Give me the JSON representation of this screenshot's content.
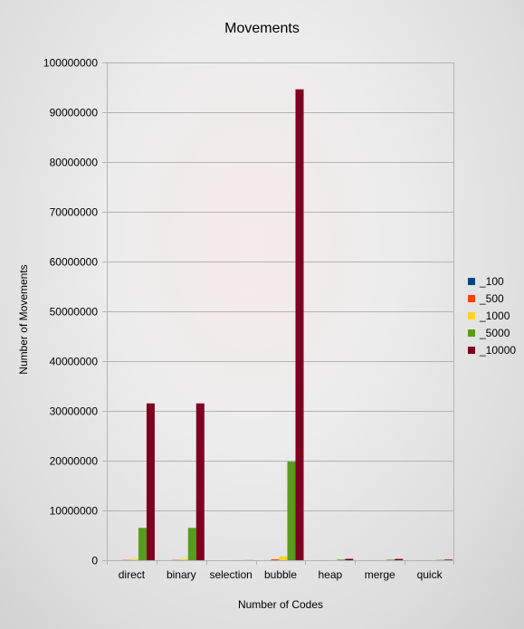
{
  "chart_data": {
    "type": "bar",
    "title": "Movements",
    "xlabel": "Number of Codes",
    "ylabel": "Number of Movements",
    "ylim": [
      0,
      100000000
    ],
    "yticks": [
      "0",
      "10000000",
      "20000000",
      "30000000",
      "40000000",
      "50000000",
      "60000000",
      "70000000",
      "80000000",
      "90000000",
      "100000000"
    ],
    "grid": true,
    "legend_position": "right",
    "categories": [
      "direct",
      "binary",
      "selection",
      "bubble",
      "heap",
      "merge",
      "quick"
    ],
    "series": [
      {
        "name": "_100",
        "color": "#004586",
        "values": [
          2500,
          2500,
          200,
          7500,
          1300,
          1300,
          700
        ]
      },
      {
        "name": "_500",
        "color": "#ff420e",
        "values": [
          63000,
          63000,
          1000,
          190000,
          9000,
          9000,
          4500
        ]
      },
      {
        "name": "_1000",
        "color": "#ffd320",
        "values": [
          250000,
          250000,
          2000,
          750000,
          20000,
          20000,
          10000
        ]
      },
      {
        "name": "_5000",
        "color": "#579d1c",
        "values": [
          6500000,
          6500000,
          10000,
          19800000,
          130000,
          120000,
          60000
        ]
      },
      {
        "name": "_10000",
        "color": "#7e0021",
        "values": [
          31500000,
          31500000,
          20000,
          94600000,
          280000,
          260000,
          130000
        ]
      }
    ]
  }
}
